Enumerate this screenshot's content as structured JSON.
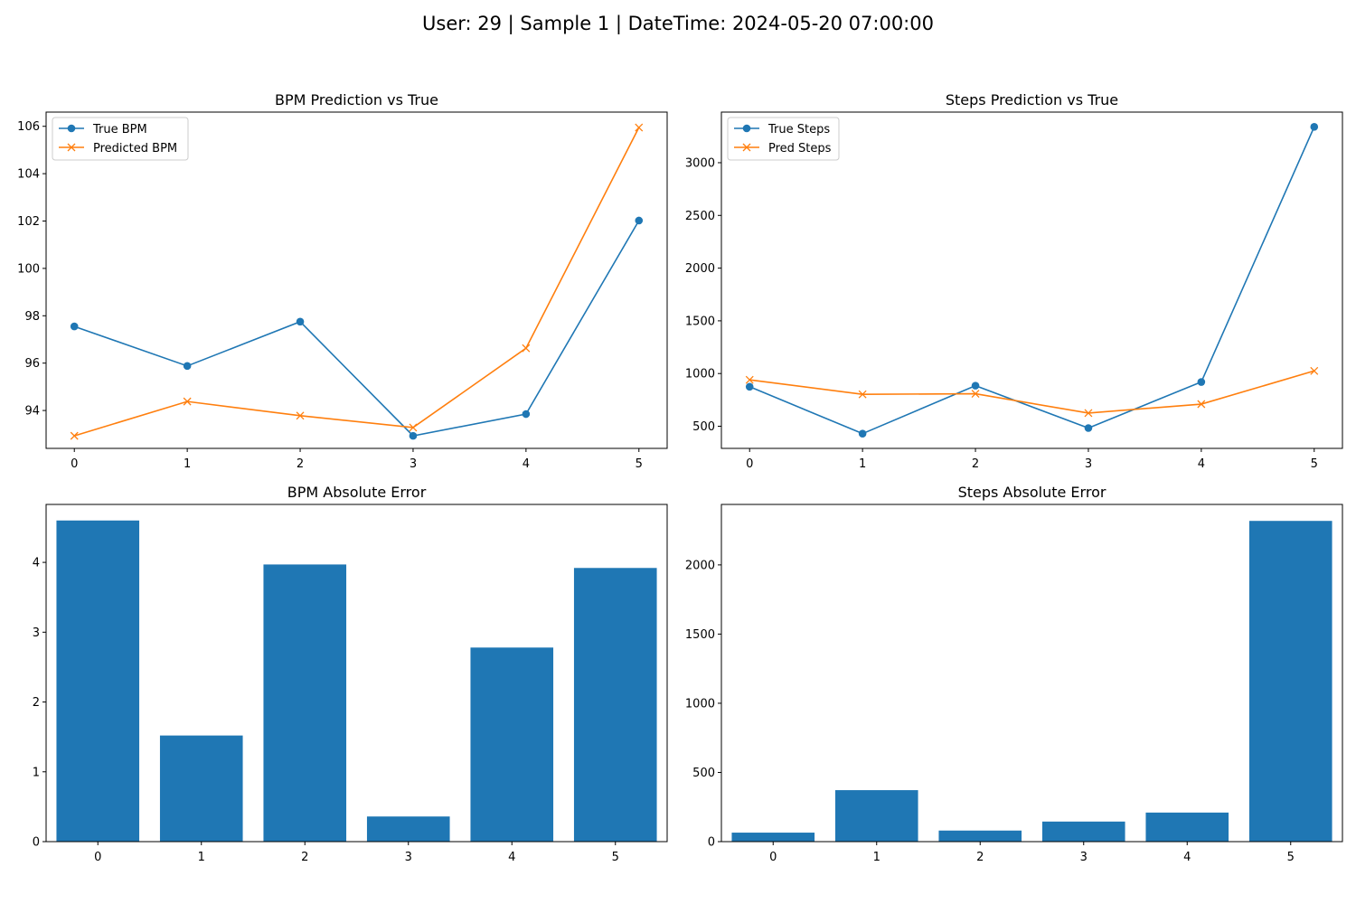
{
  "figure": {
    "suptitle": "User: 29 | Sample 1 | DateTime: 2024-05-20 07:00:00"
  },
  "colors": {
    "blue": "#1f77b4",
    "orange": "#ff7f0e",
    "axes": "#000000",
    "legend_border": "#cccccc"
  },
  "chart_data": [
    {
      "id": "bpm_line",
      "type": "line",
      "title": "BPM Prediction vs True",
      "x": [
        0,
        1,
        2,
        3,
        4,
        5
      ],
      "xticks": [
        "0",
        "1",
        "2",
        "3",
        "4",
        "5"
      ],
      "yticks": [
        "94",
        "96",
        "98",
        "100",
        "102",
        "104",
        "106"
      ],
      "xlim": [
        -0.25,
        5.25
      ],
      "ylim": [
        92.4,
        106.6
      ],
      "legend_position": "upper left",
      "grid": false,
      "series": [
        {
          "name": "True BPM",
          "marker": "circle",
          "color": "#1f77b4",
          "values": [
            97.55,
            95.88,
            97.75,
            92.93,
            93.85,
            102.02
          ]
        },
        {
          "name": "Predicted BPM",
          "marker": "x",
          "color": "#ff7f0e",
          "values": [
            92.93,
            94.38,
            93.78,
            93.28,
            96.63,
            105.95
          ]
        }
      ]
    },
    {
      "id": "steps_line",
      "type": "line",
      "title": "Steps Prediction vs True",
      "x": [
        0,
        1,
        2,
        3,
        4,
        5
      ],
      "xticks": [
        "0",
        "1",
        "2",
        "3",
        "4",
        "5"
      ],
      "yticks": [
        "500",
        "1000",
        "1500",
        "2000",
        "2500",
        "3000"
      ],
      "xlim": [
        -0.25,
        5.25
      ],
      "ylim": [
        290,
        3480
      ],
      "legend_position": "upper left",
      "grid": false,
      "series": [
        {
          "name": "True Steps",
          "marker": "circle",
          "color": "#1f77b4",
          "values": [
            875,
            430,
            885,
            483,
            920,
            3340
          ]
        },
        {
          "name": "Pred Steps",
          "marker": "x",
          "color": "#ff7f0e",
          "values": [
            940,
            803,
            808,
            625,
            710,
            1025
          ]
        }
      ]
    },
    {
      "id": "bpm_error",
      "type": "bar",
      "title": "BPM Absolute Error",
      "categories": [
        "0",
        "1",
        "2",
        "3",
        "4",
        "5"
      ],
      "yticks": [
        "0",
        "1",
        "2",
        "3",
        "4"
      ],
      "xlim": [
        -0.5,
        5.5
      ],
      "ylim": [
        0,
        4.83
      ],
      "color": "#1f77b4",
      "grid": false,
      "values": [
        4.6,
        1.52,
        3.97,
        0.36,
        2.78,
        3.92
      ]
    },
    {
      "id": "steps_error",
      "type": "bar",
      "title": "Steps Absolute Error",
      "categories": [
        "0",
        "1",
        "2",
        "3",
        "4",
        "5"
      ],
      "yticks": [
        "0",
        "500",
        "1000",
        "1500",
        "2000"
      ],
      "xlim": [
        -0.5,
        5.5
      ],
      "ylim": [
        0,
        2437
      ],
      "color": "#1f77b4",
      "grid": false,
      "values": [
        65,
        372,
        80,
        145,
        210,
        2318
      ]
    }
  ]
}
